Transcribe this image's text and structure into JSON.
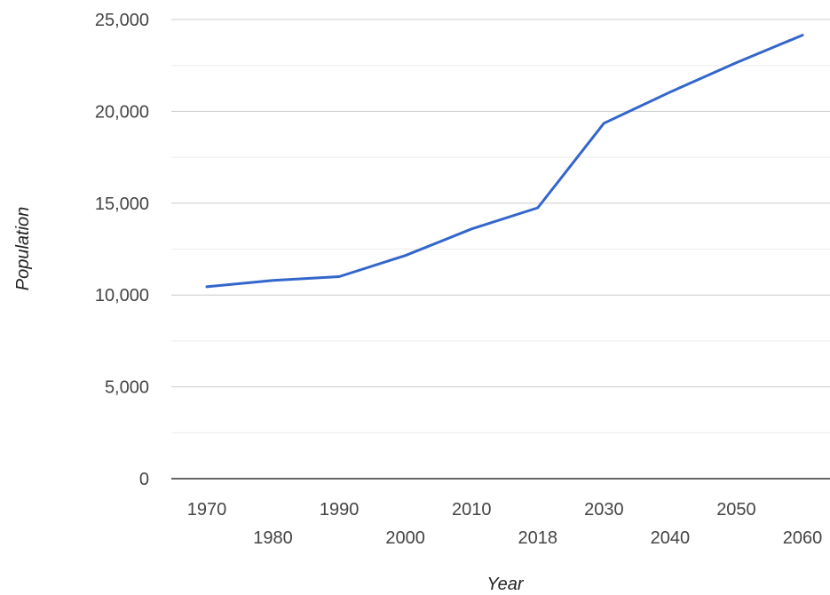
{
  "chart_data": {
    "type": "line",
    "title": "",
    "xlabel": "Year",
    "ylabel": "Population",
    "x": [
      "1970",
      "1980",
      "1990",
      "2000",
      "2010",
      "2018",
      "2030",
      "2040",
      "2050",
      "2060"
    ],
    "series": [
      {
        "values": [
          10450,
          10800,
          11000,
          12150,
          13600,
          14750,
          19350,
          21050,
          22650,
          24150
        ]
      }
    ],
    "ylim": [
      0,
      25000
    ],
    "yticks": [
      "0",
      "5,000",
      "10,000",
      "15,000",
      "20,000",
      "25,000"
    ],
    "grid": true,
    "legend": "none",
    "colors": {
      "line": "#3366cc",
      "grid_major": "#cccccc",
      "grid_minor": "#ebebeb",
      "baseline": "#333333"
    }
  }
}
